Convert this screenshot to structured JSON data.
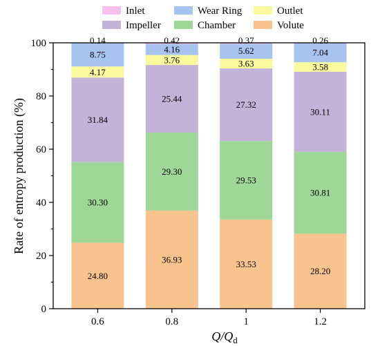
{
  "chart_data": {
    "type": "bar",
    "stacked": true,
    "categories": [
      "0.6",
      "0.8",
      "1",
      "1.2"
    ],
    "xlabel": "Q/Qd",
    "ylabel": "Rate of entropy production (%)",
    "ylim": [
      0,
      100
    ],
    "yticks": [
      "0",
      "20",
      "40",
      "60",
      "80",
      "100"
    ],
    "grid": false,
    "legend": "top",
    "series": [
      {
        "name": "Volute",
        "color": "#F9C38F",
        "values": [
          24.8,
          36.93,
          33.53,
          28.2
        ],
        "labels": [
          "24.80",
          "36.93",
          "33.53",
          "28.20"
        ]
      },
      {
        "name": "Chamber",
        "color": "#9ED797",
        "values": [
          30.3,
          29.3,
          29.53,
          30.81
        ],
        "labels": [
          "30.30",
          "29.30",
          "29.53",
          "30.81"
        ]
      },
      {
        "name": "Impeller",
        "color": "#C3B3D8",
        "values": [
          31.84,
          25.44,
          27.32,
          30.11
        ],
        "labels": [
          "31.84",
          "25.44",
          "27.32",
          "30.11"
        ]
      },
      {
        "name": "Outlet",
        "color": "#FBF99E",
        "values": [
          4.17,
          3.76,
          3.63,
          3.58
        ],
        "labels": [
          "4.17",
          "3.76",
          "3.63",
          "3.58"
        ]
      },
      {
        "name": "Wear Ring",
        "color": "#A7C4F0",
        "values": [
          8.75,
          4.16,
          5.62,
          7.04
        ],
        "labels": [
          "8.75",
          "4.16",
          "5.62",
          "7.04"
        ]
      },
      {
        "name": "Inlet",
        "color": "#F9BFEF",
        "values": [
          0.14,
          0.42,
          0.37,
          0.26
        ],
        "labels": [
          "0.14",
          "0.42",
          "0.37",
          "0.26"
        ]
      }
    ]
  }
}
